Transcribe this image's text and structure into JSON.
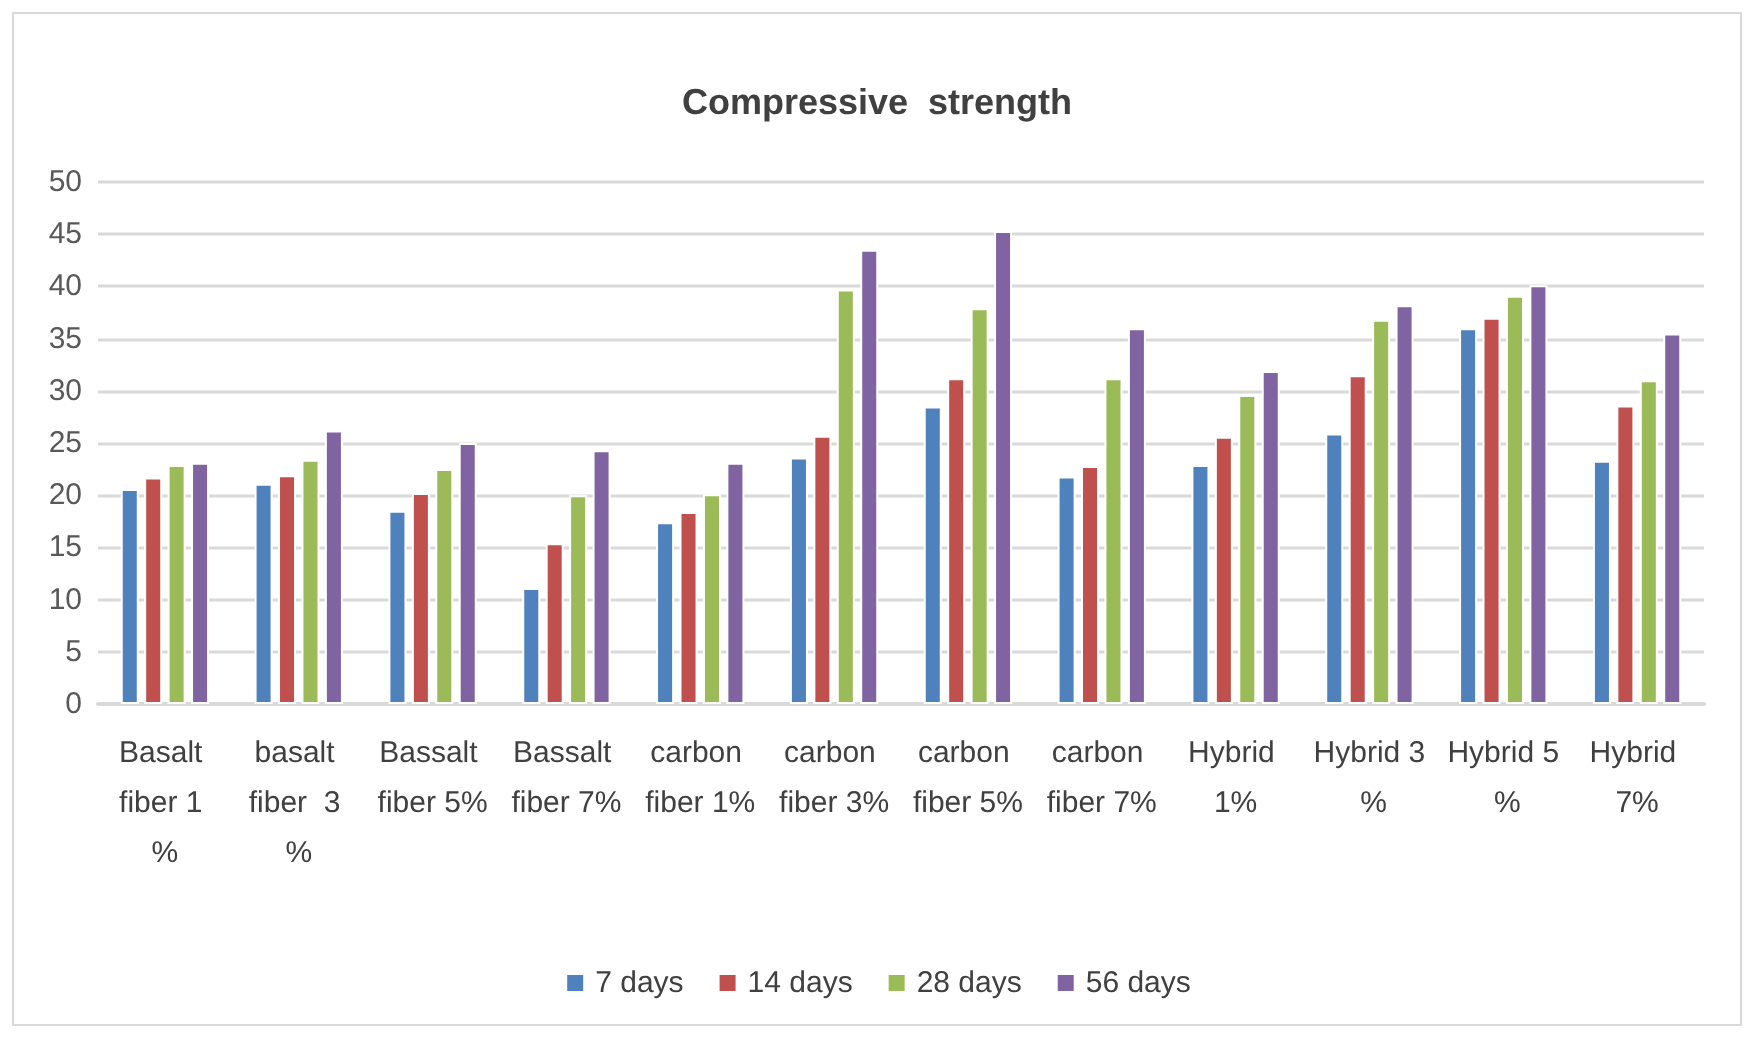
{
  "chart_data": {
    "type": "bar",
    "title": "Compressive  strength",
    "categories": [
      "Basalt fiber 1 %",
      "basalt fiber  3 %",
      "Bassalt fiber 5%",
      "Bassalt fiber 7%",
      "carbon fiber 1%",
      "carbon fiber 3%",
      "carbon fiber 5%",
      "carbon fiber 7%",
      "Hybrid 1%",
      "Hybrid 3 %",
      "Hybrid 5 %",
      "Hybrid 7%"
    ],
    "series": [
      {
        "name": "7 days",
        "color": "#4f81bd",
        "values": [
          20.6,
          21.1,
          18.5,
          11.1,
          17.4,
          23.6,
          28.5,
          21.8,
          22.9,
          25.9,
          36.0,
          23.3
        ]
      },
      {
        "name": "14 days",
        "color": "#c0504d",
        "values": [
          21.7,
          21.9,
          20.2,
          15.4,
          18.4,
          25.7,
          31.2,
          22.8,
          25.6,
          31.5,
          37.0,
          28.6
        ]
      },
      {
        "name": "28 days",
        "color": "#9bbb59",
        "values": [
          22.9,
          23.4,
          22.5,
          20.0,
          20.1,
          39.7,
          37.9,
          31.2,
          29.6,
          36.8,
          39.1,
          31.0
        ]
      },
      {
        "name": "56 days",
        "color": "#8064a2",
        "values": [
          23.1,
          26.2,
          25.0,
          24.3,
          23.1,
          43.5,
          45.3,
          36.0,
          31.9,
          38.2,
          40.1,
          35.5
        ]
      }
    ],
    "ylim": [
      0,
      50
    ],
    "yticks": [
      0,
      5,
      10,
      15,
      20,
      25,
      30,
      35,
      40,
      45,
      50
    ],
    "grid": "y",
    "legend": "bottom"
  }
}
